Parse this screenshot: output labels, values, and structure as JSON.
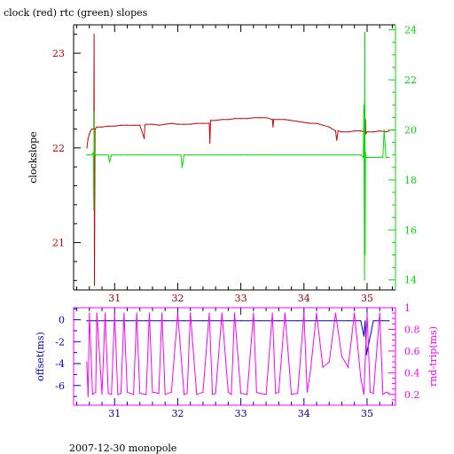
{
  "title": "clock (red) rtc (green) slopes",
  "footer": "2007-12-30 monopole",
  "chart_data": [
    {
      "type": "line",
      "xlim": [
        30.35,
        35.45
      ],
      "x_ticks": [
        31,
        32,
        33,
        34,
        35
      ],
      "ylabel": "clockslope",
      "left_axis": {
        "ylim": [
          20.5,
          23.3
        ],
        "ticks": [
          21,
          22,
          23
        ],
        "color": "#cc0000"
      },
      "right_axis": {
        "ylim": [
          13.6,
          24.2
        ],
        "ticks": [
          14,
          16,
          18,
          20,
          22,
          24
        ],
        "color": "#00dd00"
      },
      "series": [
        {
          "axis": "left",
          "color": "#cc0000",
          "x": [
            30.56,
            30.58,
            30.6,
            30.62,
            30.64,
            30.67,
            30.675,
            30.68,
            30.69,
            30.72,
            30.8,
            30.9,
            31.0,
            31.1,
            31.2,
            31.3,
            31.4,
            31.47,
            31.48,
            31.5,
            31.6,
            31.7,
            31.8,
            31.9,
            32.0,
            32.1,
            32.2,
            32.3,
            32.4,
            32.5,
            32.51,
            32.52,
            32.53,
            32.6,
            32.7,
            32.8,
            32.9,
            33.0,
            33.1,
            33.2,
            33.3,
            33.4,
            33.5,
            33.51,
            33.52,
            33.6,
            33.7,
            33.8,
            33.9,
            34.0,
            34.1,
            34.2,
            34.3,
            34.4,
            34.5,
            34.52,
            34.54,
            34.6,
            34.7,
            34.8,
            34.9,
            34.95,
            34.97,
            34.975,
            34.98,
            35.0,
            35.1,
            35.2,
            35.3,
            35.35
          ],
          "y": [
            22.0,
            22.1,
            22.15,
            22.18,
            22.2,
            22.2,
            23.2,
            20.55,
            22.2,
            22.22,
            22.22,
            22.23,
            22.23,
            22.24,
            22.24,
            22.24,
            22.24,
            22.1,
            22.24,
            22.25,
            22.25,
            22.24,
            22.25,
            22.26,
            22.25,
            22.25,
            22.25,
            22.26,
            22.26,
            22.26,
            22.05,
            22.29,
            22.29,
            22.29,
            22.3,
            22.3,
            22.31,
            22.31,
            22.31,
            22.32,
            22.32,
            22.32,
            22.3,
            22.22,
            22.3,
            22.3,
            22.3,
            22.29,
            22.28,
            22.27,
            22.26,
            22.26,
            22.24,
            22.22,
            22.18,
            22.08,
            22.18,
            22.17,
            22.17,
            22.18,
            22.18,
            22.17,
            22.17,
            22.3,
            22.15,
            22.17,
            22.17,
            22.18,
            22.17,
            22.18
          ]
        },
        {
          "axis": "right",
          "color": "#00dd00",
          "x": [
            30.56,
            30.6,
            30.64,
            30.665,
            30.67,
            30.675,
            30.68,
            30.7,
            30.75,
            30.8,
            30.9,
            30.92,
            30.95,
            31.0,
            31.1,
            31.2,
            31.3,
            31.4,
            31.5,
            31.6,
            31.7,
            31.8,
            31.9,
            32.0,
            32.05,
            32.07,
            32.1,
            32.2,
            32.3,
            32.4,
            32.5,
            32.6,
            32.7,
            32.8,
            32.9,
            33.0,
            33.1,
            33.2,
            33.3,
            33.4,
            33.5,
            33.6,
            33.7,
            33.8,
            33.9,
            34.0,
            34.1,
            34.2,
            34.3,
            34.4,
            34.5,
            34.6,
            34.7,
            34.8,
            34.9,
            34.94,
            34.95,
            34.96,
            34.965,
            34.97,
            34.975,
            34.98,
            34.99,
            35.0,
            35.1,
            35.2,
            35.25,
            35.27,
            35.3,
            35.35
          ],
          "y": [
            19.0,
            19.0,
            19.0,
            19.1,
            16.8,
            20.7,
            19.0,
            19.0,
            19.0,
            19.0,
            19.0,
            18.7,
            19.0,
            19.0,
            19.0,
            19.0,
            19.0,
            19.0,
            19.0,
            19.0,
            19.0,
            19.0,
            19.0,
            19.0,
            19.0,
            18.5,
            19.0,
            19.0,
            19.0,
            19.0,
            19.0,
            19.0,
            19.0,
            19.0,
            19.0,
            19.0,
            19.0,
            19.0,
            19.0,
            19.0,
            19.0,
            19.0,
            19.0,
            19.0,
            19.0,
            19.0,
            19.0,
            19.0,
            19.0,
            19.0,
            19.0,
            19.0,
            19.0,
            19.0,
            19.0,
            18.9,
            21.0,
            14.0,
            23.9,
            15.0,
            19.1,
            18.9,
            18.9,
            18.9,
            18.9,
            18.9,
            18.9,
            20.0,
            18.9,
            18.9
          ]
        }
      ]
    },
    {
      "type": "line",
      "xlim": [
        30.35,
        35.45
      ],
      "x_ticks": [
        31,
        32,
        33,
        34,
        35
      ],
      "left_axis": {
        "label": "offset(ms)",
        "ylim": [
          -7.8,
          1.1
        ],
        "ticks": [
          0,
          -2,
          -4,
          -6
        ],
        "color": "#0000cc"
      },
      "right_axis": {
        "label": "rnd-trip(ms)",
        "ylim": [
          0.1,
          1.0
        ],
        "ticks": [
          1,
          0.8,
          0.6,
          0.4,
          0.2
        ],
        "color": "#ff00ff"
      },
      "series": [
        {
          "axis": "left",
          "color": "#0000cc",
          "x": [
            30.56,
            30.7,
            30.9,
            31.2,
            31.5,
            31.8,
            32.1,
            32.4,
            32.7,
            33.0,
            33.3,
            33.6,
            33.9,
            34.2,
            34.5,
            34.7,
            34.9,
            34.95,
            34.97,
            34.99,
            35.1,
            35.25,
            35.35
          ],
          "y": [
            -0.1,
            -0.1,
            -0.1,
            -0.1,
            -0.1,
            -0.1,
            -0.1,
            -0.1,
            -0.1,
            -0.1,
            -0.1,
            -0.1,
            -0.1,
            -0.1,
            -0.1,
            -0.1,
            -0.1,
            -1.5,
            -0.1,
            -3.2,
            -0.1,
            -0.1,
            -0.1
          ]
        },
        {
          "axis": "right",
          "color": "#ff00ff",
          "x": [
            30.56,
            30.58,
            30.6,
            30.65,
            30.7,
            30.72,
            30.8,
            30.85,
            30.9,
            30.95,
            31.0,
            31.05,
            31.1,
            31.15,
            31.2,
            31.3,
            31.35,
            31.4,
            31.5,
            31.55,
            31.6,
            31.7,
            31.75,
            31.8,
            31.9,
            32.0,
            32.1,
            32.15,
            32.2,
            32.3,
            32.4,
            32.5,
            32.55,
            32.6,
            32.7,
            32.8,
            32.85,
            32.9,
            33.0,
            33.1,
            33.2,
            33.25,
            33.3,
            33.4,
            33.5,
            33.55,
            33.6,
            33.7,
            33.8,
            33.9,
            34.0,
            34.05,
            34.1,
            34.2,
            34.3,
            34.4,
            34.5,
            34.6,
            34.7,
            34.8,
            34.9,
            34.95,
            35.0,
            35.05,
            35.1,
            35.2,
            35.25,
            35.3,
            35.35
          ],
          "y": [
            0.5,
            0.18,
            0.95,
            0.2,
            0.22,
            0.95,
            0.2,
            0.95,
            0.21,
            0.2,
            0.95,
            0.2,
            0.21,
            0.95,
            0.22,
            0.2,
            0.95,
            0.21,
            0.2,
            0.95,
            0.22,
            0.21,
            0.95,
            0.2,
            0.22,
            0.95,
            0.2,
            0.21,
            0.95,
            0.2,
            0.22,
            0.95,
            0.2,
            0.21,
            0.95,
            0.22,
            0.2,
            0.95,
            0.21,
            0.2,
            0.95,
            0.22,
            0.21,
            0.2,
            0.95,
            0.21,
            0.22,
            0.95,
            0.2,
            0.21,
            0.95,
            0.22,
            0.4,
            0.95,
            0.45,
            0.5,
            0.95,
            0.55,
            0.45,
            0.95,
            0.35,
            0.2,
            0.95,
            0.22,
            0.21,
            0.95,
            0.2,
            0.22,
            0.21
          ]
        }
      ]
    }
  ]
}
